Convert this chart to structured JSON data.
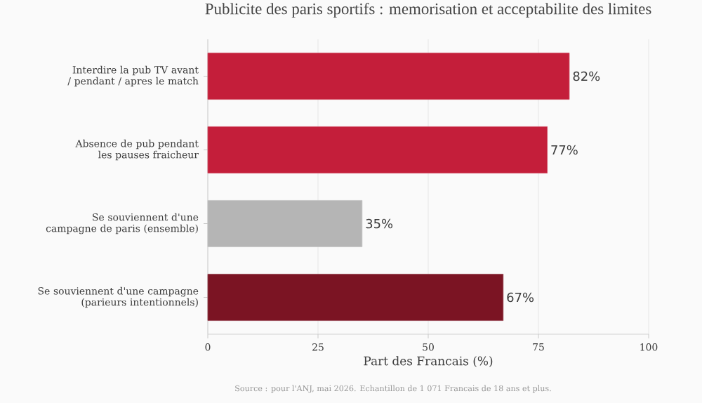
{
  "chart_data": {
    "type": "bar",
    "orientation": "horizontal",
    "title": "Publicite des paris sportifs : memorisation et acceptabilite des limites",
    "xlabel": "Part des Francais (%)",
    "categories": [
      "Interdire la pub TV avant / pendant / apres le match",
      "Absence de pub pendant les pauses fraicheur",
      "Se souviennent d'une campagne de paris (ensemble)",
      "Se souviennent d'une campagne (parieurs intentionnels)"
    ],
    "values": [
      82,
      77,
      35,
      67
    ],
    "colors": [
      "#c41e3a",
      "#c41e3a",
      "#b5b5b5",
      "#7b1423"
    ],
    "value_labels": [
      "82%",
      "77%",
      "35%",
      "67%"
    ],
    "xlim": [
      0,
      100
    ],
    "xticks": [
      0,
      25,
      50,
      75,
      100
    ],
    "grid": "x",
    "annotations": [
      "Source : pour l'ANJ, mai 2026. Echantillon de 1 071 Francais de 18 ans et plus."
    ]
  }
}
